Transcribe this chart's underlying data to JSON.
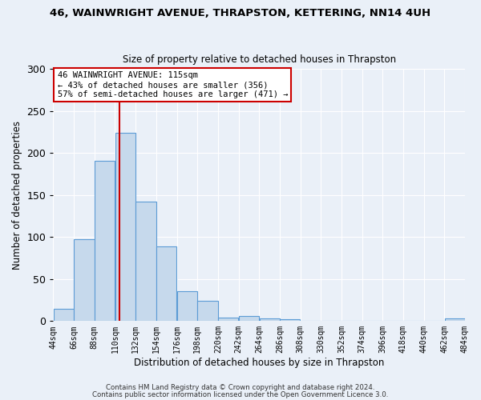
{
  "title": "46, WAINWRIGHT AVENUE, THRAPSTON, KETTERING, NN14 4UH",
  "subtitle": "Size of property relative to detached houses in Thrapston",
  "xlabel": "Distribution of detached houses by size in Thrapston",
  "ylabel": "Number of detached properties",
  "property_size": 115,
  "bin_edges": [
    44,
    66,
    88,
    110,
    132,
    154,
    176,
    198,
    220,
    242,
    264,
    286,
    308,
    330,
    352,
    374,
    396,
    418,
    440,
    462,
    484
  ],
  "bar_heights": [
    15,
    97,
    191,
    224,
    142,
    89,
    36,
    24,
    4,
    6,
    3,
    2,
    0,
    0,
    0,
    0,
    0,
    0,
    0,
    3
  ],
  "bar_color": "#c6d9ec",
  "bar_edge_color": "#5b9bd5",
  "vline_color": "#cc0000",
  "annotation_line1": "46 WAINWRIGHT AVENUE: 115sqm",
  "annotation_line2": "← 43% of detached houses are smaller (356)",
  "annotation_line3": "57% of semi-detached houses are larger (471) →",
  "annotation_box_color": "#ffffff",
  "annotation_box_edge": "#cc0000",
  "footnote1": "Contains HM Land Registry data © Crown copyright and database right 2024.",
  "footnote2": "Contains public sector information licensed under the Open Government Licence 3.0.",
  "ylim": [
    0,
    300
  ],
  "xlim": [
    44,
    484
  ],
  "background_color": "#eaf0f8",
  "grid_color": "#ffffff"
}
